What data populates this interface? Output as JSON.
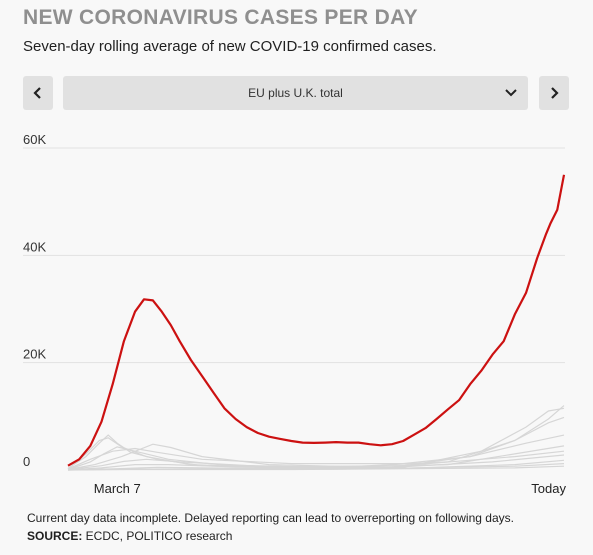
{
  "header": {
    "title": "NEW CORONAVIRUS CASES PER DAY",
    "subtitle": "Seven-day rolling average of new COVID-19 confirmed cases."
  },
  "controls": {
    "prev_icon": "chevron-left-icon",
    "next_icon": "chevron-right-icon",
    "selected": "EU plus U.K. total",
    "dropdown_icon": "chevron-down-icon"
  },
  "colors": {
    "highlight": "#cc1111",
    "background_series": "#d6d6d6",
    "grid": "#e2e2e2",
    "control_bg": "#e1e1e1"
  },
  "chart_data": {
    "type": "line",
    "xlabel": "",
    "ylabel": "",
    "ylim": [
      0,
      60000
    ],
    "yticks": [
      {
        "value": 0,
        "label": "0"
      },
      {
        "value": 20000,
        "label": "20K"
      },
      {
        "value": 40000,
        "label": "40K"
      },
      {
        "value": 60000,
        "label": "60K"
      }
    ],
    "xticks": [
      {
        "day": 12,
        "label": "March 7"
      },
      {
        "day": 220,
        "label": "Today"
      }
    ],
    "xlim": [
      0,
      222
    ],
    "grid": true,
    "highlighted_series": {
      "name": "EU plus U.K. total",
      "points": [
        [
          0,
          800
        ],
        [
          5,
          2000
        ],
        [
          10,
          4500
        ],
        [
          15,
          9000
        ],
        [
          20,
          16000
        ],
        [
          25,
          24000
        ],
        [
          30,
          29500
        ],
        [
          34,
          31800
        ],
        [
          38,
          31600
        ],
        [
          42,
          29500
        ],
        [
          46,
          27000
        ],
        [
          50,
          24000
        ],
        [
          55,
          20500
        ],
        [
          60,
          17500
        ],
        [
          65,
          14500
        ],
        [
          70,
          11500
        ],
        [
          75,
          9500
        ],
        [
          80,
          8000
        ],
        [
          85,
          6900
        ],
        [
          90,
          6200
        ],
        [
          95,
          5800
        ],
        [
          100,
          5400
        ],
        [
          105,
          5100
        ],
        [
          110,
          5050
        ],
        [
          115,
          5100
        ],
        [
          120,
          5200
        ],
        [
          125,
          5100
        ],
        [
          130,
          5100
        ],
        [
          135,
          4800
        ],
        [
          140,
          4600
        ],
        [
          145,
          4800
        ],
        [
          150,
          5400
        ],
        [
          155,
          6600
        ],
        [
          160,
          7800
        ],
        [
          165,
          9500
        ],
        [
          170,
          11300
        ],
        [
          175,
          13000
        ],
        [
          180,
          16000
        ],
        [
          185,
          18500
        ],
        [
          190,
          21500
        ],
        [
          195,
          24000
        ],
        [
          200,
          29000
        ],
        [
          205,
          33000
        ],
        [
          210,
          39500
        ],
        [
          214,
          44000
        ],
        [
          216,
          46000
        ],
        [
          219,
          48500
        ],
        [
          222,
          55000
        ]
      ]
    },
    "background_series": [
      {
        "points": [
          [
            0,
            300
          ],
          [
            8,
            2500
          ],
          [
            14,
            5000
          ],
          [
            18,
            6500
          ],
          [
            22,
            5000
          ],
          [
            28,
            3300
          ],
          [
            40,
            2000
          ],
          [
            60,
            800
          ],
          [
            100,
            400
          ],
          [
            150,
            800
          ],
          [
            180,
            2500
          ],
          [
            200,
            5500
          ],
          [
            215,
            9500
          ],
          [
            222,
            12000
          ]
        ]
      },
      {
        "points": [
          [
            0,
            200
          ],
          [
            8,
            3000
          ],
          [
            14,
            5500
          ],
          [
            18,
            6000
          ],
          [
            24,
            4300
          ],
          [
            35,
            2500
          ],
          [
            55,
            1000
          ],
          [
            100,
            300
          ],
          [
            150,
            500
          ],
          [
            185,
            3500
          ],
          [
            205,
            8000
          ],
          [
            215,
            11000
          ],
          [
            222,
            11500
          ]
        ]
      },
      {
        "points": [
          [
            0,
            100
          ],
          [
            10,
            1500
          ],
          [
            16,
            3000
          ],
          [
            22,
            4300
          ],
          [
            30,
            3500
          ],
          [
            45,
            2000
          ],
          [
            70,
            900
          ],
          [
            120,
            500
          ],
          [
            170,
            1500
          ],
          [
            200,
            5500
          ],
          [
            215,
            8800
          ],
          [
            222,
            9800
          ]
        ]
      },
      {
        "points": [
          [
            0,
            200
          ],
          [
            10,
            2000
          ],
          [
            20,
            3500
          ],
          [
            30,
            4000
          ],
          [
            40,
            3300
          ],
          [
            60,
            2000
          ],
          [
            100,
            1200
          ],
          [
            150,
            1200
          ],
          [
            180,
            2500
          ],
          [
            205,
            5000
          ],
          [
            222,
            6500
          ]
        ]
      },
      {
        "points": [
          [
            0,
            100
          ],
          [
            12,
            1000
          ],
          [
            24,
            2500
          ],
          [
            38,
            4800
          ],
          [
            46,
            4200
          ],
          [
            60,
            2500
          ],
          [
            90,
            1000
          ],
          [
            130,
            600
          ],
          [
            170,
            1000
          ],
          [
            200,
            3000
          ],
          [
            222,
            4500
          ]
        ]
      },
      {
        "points": [
          [
            0,
            50
          ],
          [
            15,
            800
          ],
          [
            25,
            1600
          ],
          [
            35,
            2000
          ],
          [
            50,
            1500
          ],
          [
            90,
            600
          ],
          [
            150,
            800
          ],
          [
            200,
            2500
          ],
          [
            222,
            3500
          ]
        ]
      },
      {
        "points": [
          [
            0,
            0
          ],
          [
            15,
            400
          ],
          [
            30,
            1000
          ],
          [
            45,
            1000
          ],
          [
            80,
            500
          ],
          [
            140,
            400
          ],
          [
            190,
            1500
          ],
          [
            222,
            2800
          ]
        ]
      },
      {
        "points": [
          [
            0,
            0
          ],
          [
            20,
            200
          ],
          [
            40,
            500
          ],
          [
            80,
            300
          ],
          [
            150,
            300
          ],
          [
            200,
            1000
          ],
          [
            222,
            1800
          ]
        ]
      },
      {
        "points": [
          [
            0,
            0
          ],
          [
            25,
            150
          ],
          [
            60,
            250
          ],
          [
            120,
            150
          ],
          [
            200,
            700
          ],
          [
            222,
            1200
          ]
        ]
      },
      {
        "points": [
          [
            0,
            0
          ],
          [
            30,
            100
          ],
          [
            100,
            100
          ],
          [
            200,
            400
          ],
          [
            222,
            700
          ]
        ]
      }
    ]
  },
  "footer": {
    "note": "Current day data incomplete. Delayed reporting can lead to overreporting on following days.",
    "source_label": "SOURCE:",
    "source_text": " ECDC, POLITICO research"
  }
}
